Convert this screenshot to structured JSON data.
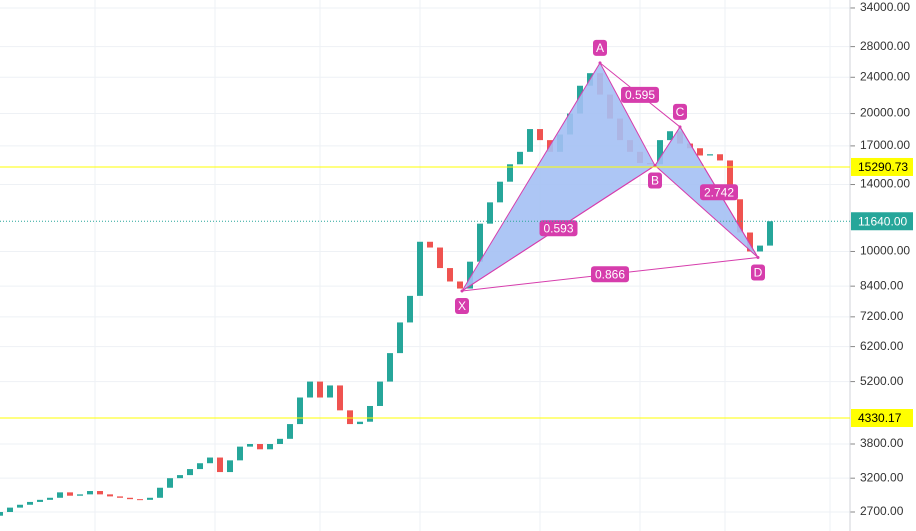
{
  "chart_data": {
    "type": "candlestick",
    "x": [
      0,
      1,
      2,
      3,
      4,
      5,
      6,
      7,
      8,
      9,
      10,
      11,
      12,
      13,
      14,
      15,
      16,
      17,
      18,
      19,
      20,
      21,
      22,
      23,
      24,
      25,
      26,
      27,
      28,
      29,
      30,
      31,
      32,
      33,
      34,
      35,
      36,
      37,
      38,
      39,
      40,
      41,
      42,
      43,
      44,
      45,
      46,
      47,
      48,
      49,
      50,
      51,
      52,
      53,
      54,
      55,
      56,
      57,
      58,
      59,
      60,
      61,
      62,
      63,
      64,
      65,
      66,
      67,
      68,
      69,
      70,
      71,
      72,
      73,
      74,
      75,
      76,
      77
    ],
    "open": [
      2650,
      2700,
      2760,
      2800,
      2840,
      2870,
      2900,
      2980,
      2930,
      2950,
      3000,
      2950,
      2920,
      2900,
      2880,
      2870,
      2900,
      3050,
      3200,
      3250,
      3350,
      3450,
      3550,
      3300,
      3500,
      3750,
      3800,
      3700,
      3800,
      3900,
      4200,
      4800,
      5200,
      4800,
      5100,
      4500,
      4200,
      4250,
      4600,
      5200,
      6000,
      7000,
      8000,
      10500,
      10200,
      9200,
      8600,
      8300,
      9500,
      11500,
      12800,
      14200,
      15500,
      16500,
      18500,
      17500,
      16500,
      18000,
      20000,
      23000,
      24500,
      22000,
      19500,
      17500,
      16500,
      15600,
      15500,
      17500,
      18300,
      17200,
      16800,
      16200,
      16300,
      15800,
      13000,
      11000,
      10000,
      10300
    ],
    "close": [
      2700,
      2760,
      2800,
      2840,
      2870,
      2900,
      2980,
      2930,
      2950,
      3000,
      2950,
      2920,
      2900,
      2880,
      2870,
      2900,
      3050,
      3200,
      3250,
      3350,
      3450,
      3550,
      3300,
      3500,
      3750,
      3800,
      3700,
      3800,
      3900,
      4200,
      4800,
      5200,
      4800,
      5100,
      4500,
      4200,
      4250,
      4600,
      5200,
      6000,
      7000,
      8000,
      10500,
      10200,
      9200,
      8600,
      8300,
      9500,
      11500,
      12800,
      14200,
      15500,
      16500,
      18500,
      17500,
      16500,
      18000,
      20000,
      23000,
      24500,
      22000,
      19500,
      17500,
      16500,
      15600,
      15500,
      17500,
      18300,
      17200,
      16800,
      16200,
      16300,
      15800,
      13000,
      11000,
      10000,
      10300,
      11640
    ],
    "up_color": "#26a69a",
    "down_color": "#ef5350",
    "log_scale": true,
    "xlim": [
      0,
      85
    ],
    "xticks": [
      9.5,
      21.5,
      32,
      42,
      54,
      64,
      72.5,
      83
    ],
    "ylim": [
      2454,
      35390
    ],
    "yticks": [
      {
        "value": 34000,
        "label": "34000.00"
      },
      {
        "value": 28000,
        "label": "28000.00"
      },
      {
        "value": 24000,
        "label": "24000.00"
      },
      {
        "value": 20000,
        "label": "20000.00"
      },
      {
        "value": 17000,
        "label": "17000.00"
      },
      {
        "value": 14000,
        "label": "14000.00"
      },
      {
        "value": 10000,
        "label": "10000.00"
      },
      {
        "value": 8400,
        "label": "8400.00"
      },
      {
        "value": 7200,
        "label": "7200.00"
      },
      {
        "value": 6200,
        "label": "6200.00"
      },
      {
        "value": 5200,
        "label": "5200.00"
      },
      {
        "value": 3800,
        "label": "3800.00"
      },
      {
        "value": 3200,
        "label": "3200.00"
      },
      {
        "value": 2700,
        "label": "2700.00"
      }
    ],
    "grid": true,
    "levels": [
      {
        "value": 15290.73,
        "color": "#ffff00"
      },
      {
        "value": 11640,
        "label": "11640.00",
        "color": "#26a69a"
      },
      {
        "value": 4330.17,
        "color": "#ffff00"
      }
    ],
    "pattern": {
      "color": "#d63dac",
      "fill": "#a4c0f4",
      "points": [
        {
          "name": "X",
          "x": 46.2,
          "y": 8200
        },
        {
          "name": "A",
          "x": 60,
          "y": 25800
        },
        {
          "name": "B",
          "x": 65.5,
          "y": 15400
        },
        {
          "name": "C",
          "x": 68,
          "y": 18700
        },
        {
          "name": "D",
          "x": 75.8,
          "y": 9700
        }
      ],
      "ratios": [
        0.595,
        0.593,
        2.742,
        0.866
      ]
    }
  }
}
